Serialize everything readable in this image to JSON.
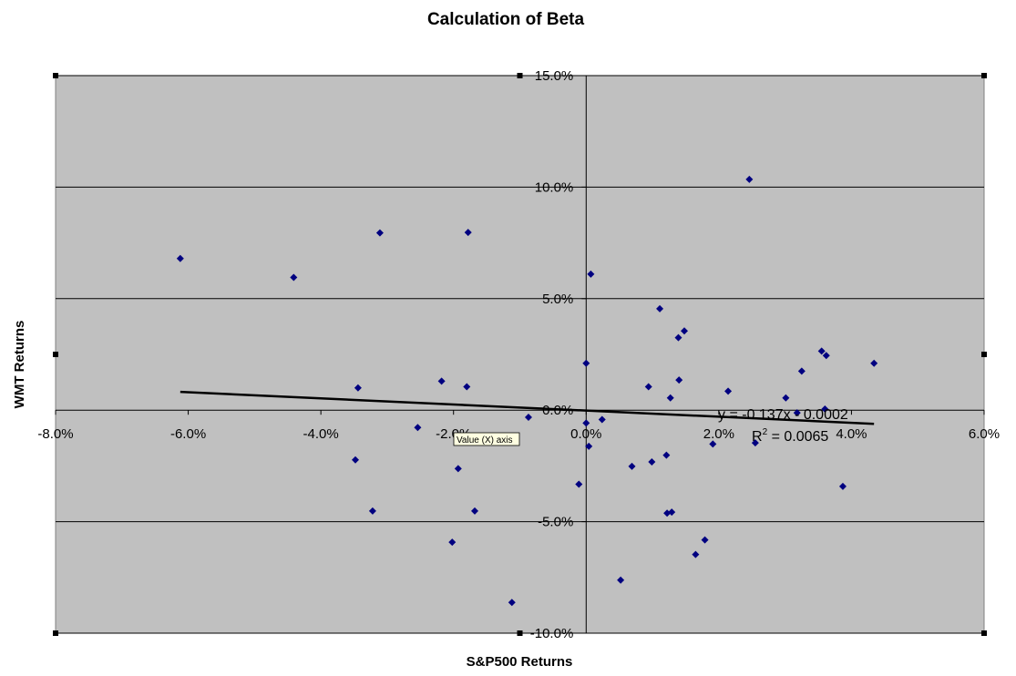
{
  "chart_data": {
    "type": "scatter",
    "title": "Calculation of Beta",
    "xlabel": "S&P500 Returns",
    "ylabel": "WMT Returns",
    "xlim": [
      -0.08,
      0.06
    ],
    "ylim": [
      -0.1,
      0.15
    ],
    "x_ticks": [
      -0.08,
      -0.06,
      -0.04,
      -0.02,
      0.0,
      0.02,
      0.04,
      0.06
    ],
    "y_ticks": [
      -0.1,
      -0.05,
      0.0,
      0.05,
      0.1,
      0.15
    ],
    "x_tick_labels": [
      "-8.0%",
      "-6.0%",
      "-4.0%",
      "-2.0%",
      "0.0%",
      "2.0%",
      "4.0%",
      "6.0%"
    ],
    "y_tick_labels": [
      "-10.0%",
      "-5.0%",
      "0.0%",
      "5.0%",
      "10.0%",
      "15.0%"
    ],
    "grid": "horizontal",
    "colors": {
      "plot_bg": "#c0c0c0",
      "marker": "#000080",
      "trend": "#000000"
    },
    "points": [
      [
        -0.0612,
        0.068
      ],
      [
        -0.0441,
        0.0595
      ],
      [
        -0.0311,
        0.0795
      ],
      [
        -0.0178,
        0.0797
      ],
      [
        -0.0344,
        0.01
      ],
      [
        -0.0218,
        0.013
      ],
      [
        -0.018,
        0.0105
      ],
      [
        -0.0254,
        -0.0078
      ],
      [
        -0.0348,
        -0.0223
      ],
      [
        -0.0322,
        -0.0452
      ],
      [
        -0.0193,
        -0.0262
      ],
      [
        -0.0168,
        -0.0452
      ],
      [
        -0.0202,
        -0.0592
      ],
      [
        -0.0112,
        -0.0862
      ],
      [
        -0.0087,
        -0.0032
      ],
      [
        0.0,
        0.021
      ],
      [
        0.0007,
        0.061
      ],
      [
        0.0,
        -0.0058
      ],
      [
        0.0004,
        -0.0162
      ],
      [
        0.0024,
        -0.0042
      ],
      [
        -0.0011,
        -0.0332
      ],
      [
        0.0052,
        -0.0762
      ],
      [
        0.0069,
        -0.0252
      ],
      [
        0.0094,
        0.0105
      ],
      [
        0.0099,
        -0.0232
      ],
      [
        0.0111,
        0.0455
      ],
      [
        0.0121,
        -0.0202
      ],
      [
        0.0127,
        0.0055
      ],
      [
        0.0139,
        0.0325
      ],
      [
        0.014,
        0.0135
      ],
      [
        0.0148,
        0.0355
      ],
      [
        0.0122,
        -0.0462
      ],
      [
        0.0129,
        -0.0457
      ],
      [
        0.0165,
        -0.0647
      ],
      [
        0.0179,
        -0.0582
      ],
      [
        0.0191,
        -0.0152
      ],
      [
        0.0214,
        0.0085
      ],
      [
        0.0246,
        0.1035
      ],
      [
        0.0255,
        -0.0147
      ],
      [
        0.0301,
        0.0055
      ],
      [
        0.0325,
        0.0175
      ],
      [
        0.0318,
        -0.0012
      ],
      [
        0.0355,
        0.0265
      ],
      [
        0.036,
        0.0005
      ],
      [
        0.0362,
        0.0245
      ],
      [
        0.0387,
        -0.0342
      ],
      [
        0.0434,
        0.021
      ]
    ],
    "trendline": {
      "slope": -0.137,
      "intercept": -0.0002,
      "x_range": [
        -0.0612,
        0.0434
      ]
    },
    "equation": "y = -0.137x - 0.0002",
    "r2_prefix": "R",
    "r2_sup": "2",
    "r2_suffix": " = 0.0065",
    "tooltip": "Value (X) axis"
  }
}
